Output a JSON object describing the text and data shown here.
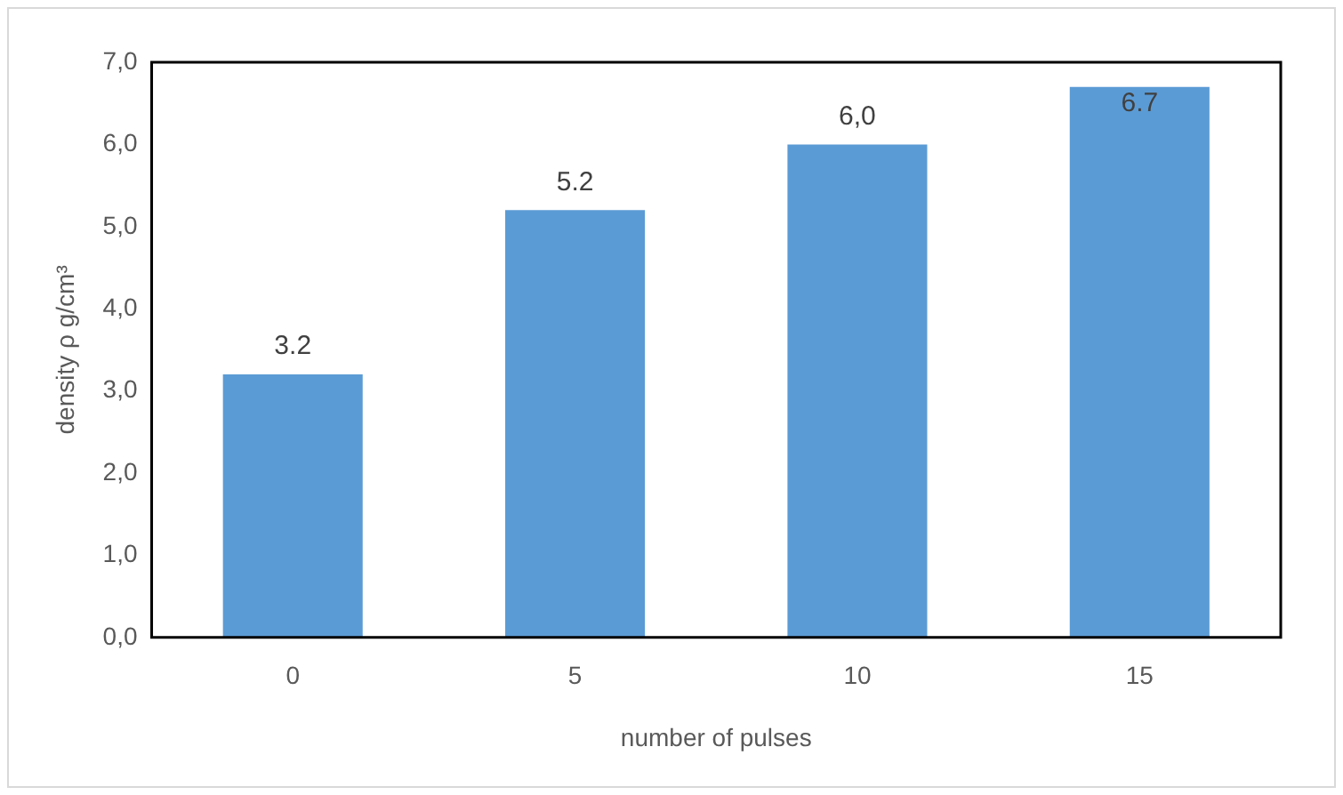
{
  "chart_data": {
    "type": "bar",
    "xlabel": "number of pulses",
    "ylabel": "density ρ g/cm³",
    "categories": [
      "0",
      "5",
      "10",
      "15"
    ],
    "values": [
      3.2,
      5.2,
      6.0,
      6.7
    ],
    "color": "#5b9bd5",
    "value_labels": [
      "3.2",
      "5.2",
      "6,0",
      "6.7"
    ],
    "ylim": [
      0,
      7
    ],
    "yticks": [
      {
        "value": 0,
        "label": "0,0"
      },
      {
        "value": 1,
        "label": "1,0"
      },
      {
        "value": 2,
        "label": "2,0"
      },
      {
        "value": 3,
        "label": "3,0"
      },
      {
        "value": 4,
        "label": "4,0"
      },
      {
        "value": 5,
        "label": "5,0"
      },
      {
        "value": 6,
        "label": "6,0"
      },
      {
        "value": 7,
        "label": "7,0"
      }
    ],
    "grid": false,
    "legend": false
  }
}
